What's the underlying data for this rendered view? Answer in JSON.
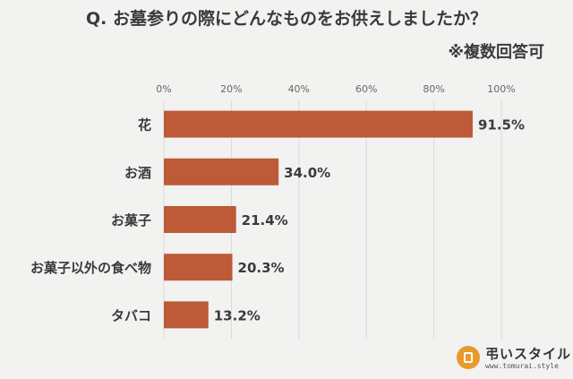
{
  "header": {
    "title": "Q. お墓参りの際にどんなものをお供えしましたか？",
    "subtitle": "※複数回答可"
  },
  "logo": {
    "name": "弔いスタイル",
    "url": "www.tomurai.style"
  },
  "chart_data": {
    "type": "bar",
    "orientation": "horizontal",
    "categories": [
      "花",
      "お酒",
      "お菓子",
      "お菓子以外の食べ物",
      "タバコ"
    ],
    "values": [
      91.5,
      34.0,
      21.4,
      20.3,
      13.2
    ],
    "value_labels": [
      "91.5%",
      "34.0%",
      "21.4%",
      "20.3%",
      "13.2%"
    ],
    "xlim": [
      0,
      100
    ],
    "x_ticks": [
      "0%",
      "20%",
      "40%",
      "60%",
      "80%",
      "100%"
    ],
    "x_tick_values": [
      0,
      20,
      40,
      60,
      80,
      100
    ],
    "axis_position": "top",
    "grid": true,
    "legend": "none",
    "bar_color": "#bd5a37",
    "grid_color": "#d9d9d9"
  }
}
